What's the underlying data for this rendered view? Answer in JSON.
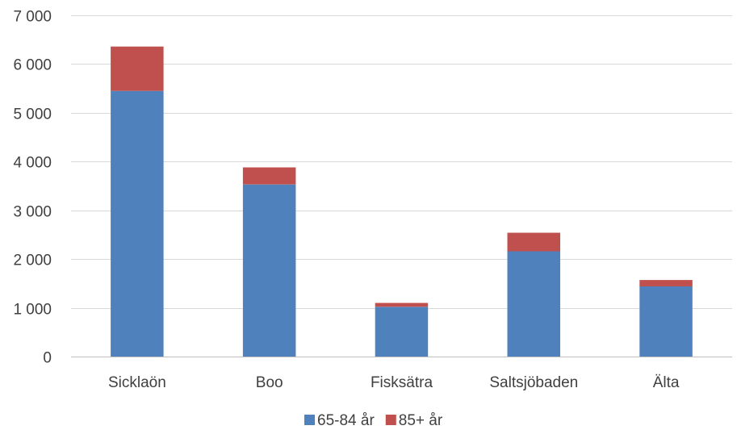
{
  "chart_data": {
    "type": "bar",
    "stacked": true,
    "categories": [
      "Sicklaön",
      "Boo",
      "Fisksätra",
      "Saltsjöbaden",
      "Älta"
    ],
    "series": [
      {
        "name": "65-84 år",
        "color": "#4f81bd",
        "values": [
          5450,
          3530,
          1020,
          2160,
          1440
        ]
      },
      {
        "name": "85+ år",
        "color": "#c0504d",
        "values": [
          910,
          350,
          80,
          380,
          130
        ]
      }
    ],
    "ylim": [
      0,
      7000
    ],
    "yticks": [
      0,
      1000,
      2000,
      3000,
      4000,
      5000,
      6000,
      7000
    ],
    "ytick_labels": [
      "0",
      "1 000",
      "2 000",
      "3 000",
      "4 000",
      "5 000",
      "6 000",
      "7 000"
    ],
    "grid": true,
    "legend_position": "bottom"
  }
}
